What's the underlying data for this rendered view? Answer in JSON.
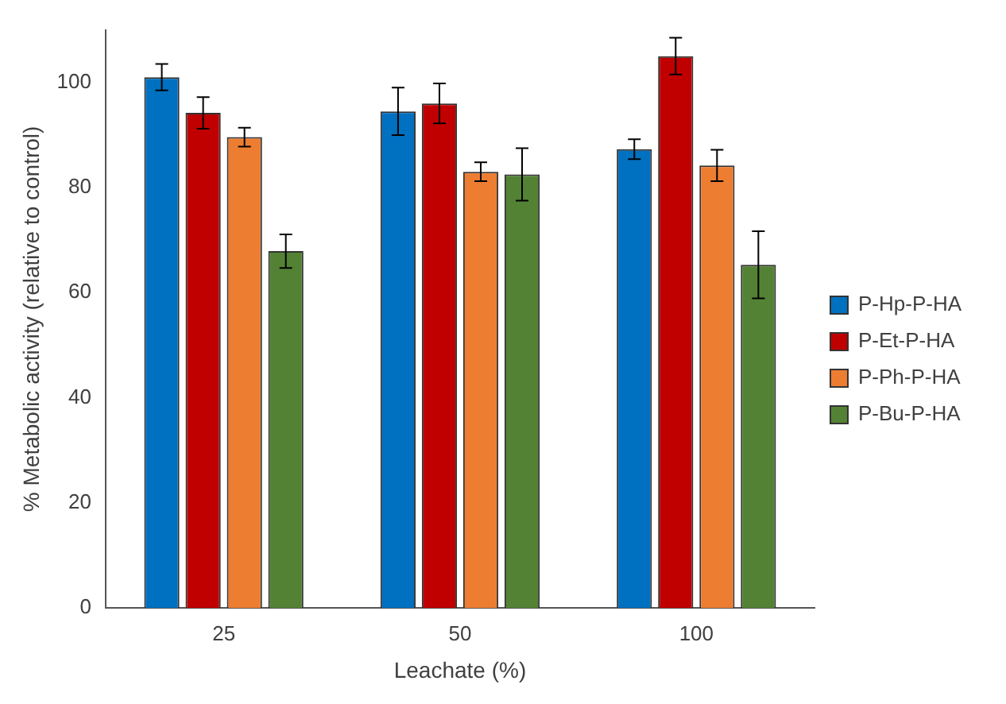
{
  "chart_data": {
    "type": "bar",
    "xlabel": "Leachate (%)",
    "ylabel": "% Metabolic activity (relative to control)",
    "categories": [
      "25",
      "50",
      "100"
    ],
    "series": [
      {
        "name": "P-Hp-P-HA",
        "color": "#0070c0",
        "values": [
          101,
          94.5,
          87.3
        ],
        "errors": [
          2.5,
          4.5,
          1.9
        ]
      },
      {
        "name": "P-Et-P-HA",
        "color": "#c00000",
        "values": [
          94.2,
          96,
          105
        ],
        "errors": [
          3,
          3.8,
          3.5
        ]
      },
      {
        "name": "P-Ph-P-HA",
        "color": "#ed7d31",
        "values": [
          89.6,
          83,
          84.2
        ],
        "errors": [
          1.8,
          1.8,
          3
        ]
      },
      {
        "name": "P-Bu-P-HA",
        "color": "#548235",
        "values": [
          67.9,
          82.5,
          65.3
        ],
        "errors": [
          3.2,
          5,
          6.4
        ]
      }
    ],
    "ylim": [
      0,
      110
    ],
    "yticks": [
      0,
      20,
      40,
      60,
      80,
      100
    ],
    "grid": false,
    "legend": "right"
  }
}
